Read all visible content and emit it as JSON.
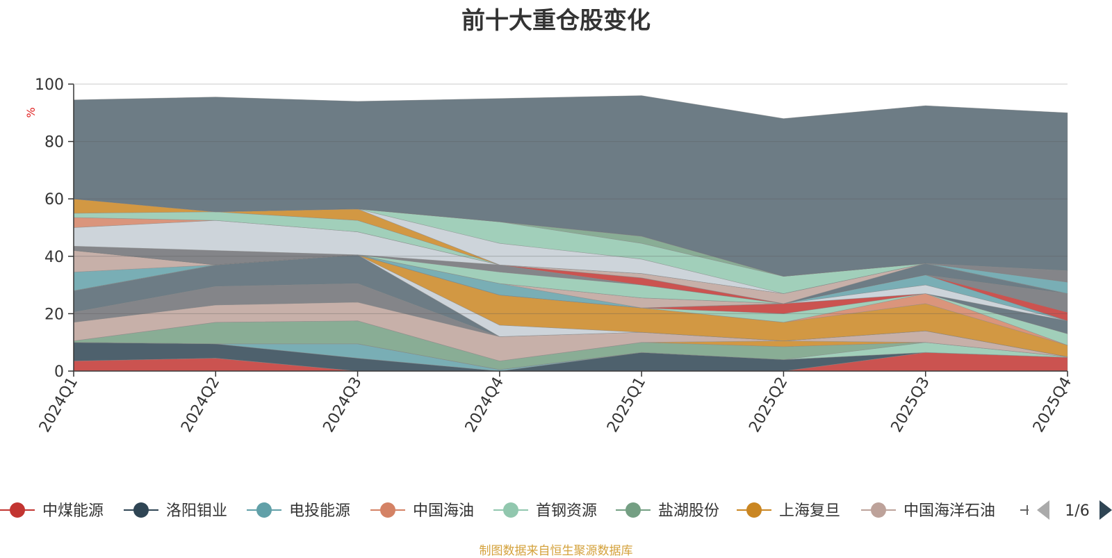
{
  "chart_data": {
    "type": "area",
    "title": "前十大重仓股变化",
    "ylabel": "%",
    "ylim": [
      0,
      100
    ],
    "yticks": [
      0,
      20,
      40,
      60,
      80,
      100
    ],
    "grid": true,
    "categories": [
      "2024Q1",
      "2024Q2",
      "2024Q3",
      "2024Q4",
      "2025Q1",
      "2025Q2",
      "2025Q3",
      "2025Q4"
    ],
    "series": [
      {
        "name": "中煤能源",
        "color": "#c23531",
        "values": [
          3.5,
          4.5,
          0.0,
          0.0,
          0.0,
          0.0,
          6.5,
          4.8
        ]
      },
      {
        "name": "洛阳钼业",
        "color": "#2f4554",
        "values": [
          6.5,
          5.0,
          4.5,
          0.0,
          6.5,
          4.0,
          0.0,
          0.0
        ]
      },
      {
        "name": "电投能源",
        "color": "#61a0a8",
        "values": [
          0.0,
          0.0,
          5.0,
          0.5,
          0.0,
          0.0,
          0.0,
          0.0
        ]
      },
      {
        "name": "中国海油",
        "color": "#d48265",
        "values": [
          0.0,
          0.0,
          0.0,
          0.0,
          0.0,
          0.0,
          0.0,
          0.0
        ]
      },
      {
        "name": "首钢资源",
        "color": "#91c7ae",
        "values": [
          0.0,
          0.0,
          0.0,
          0.0,
          0.0,
          0.0,
          3.5,
          0.2
        ]
      },
      {
        "name": "盐湖股份",
        "color": "#749f83",
        "values": [
          0.5,
          7.5,
          8.0,
          3.0,
          3.5,
          4.5,
          0.0,
          0.0
        ]
      },
      {
        "name": "上海复旦",
        "color": "#ca8622",
        "values": [
          0.0,
          0.0,
          0.0,
          0.0,
          0.0,
          2.0,
          0.0,
          0.0
        ]
      },
      {
        "name": "中国海洋石油",
        "color": "#bda29a",
        "values": [
          6.5,
          6.0,
          6.5,
          8.5,
          3.5,
          0.0,
          4.0,
          0.0
        ]
      },
      {
        "name": "",
        "color": "#6e7074",
        "values": [
          3.5,
          6.5,
          6.5,
          0.0,
          0.0,
          0.0,
          0.0,
          0.0
        ]
      },
      {
        "name": "",
        "color": "#546570",
        "values": [
          7.5,
          7.5,
          10.0,
          0.0,
          0.0,
          0.0,
          0.0,
          0.0
        ]
      },
      {
        "name": "",
        "color": "#c4ccd3",
        "values": [
          0.0,
          0.0,
          0.0,
          4.0,
          0.0,
          0.0,
          0.0,
          0.0
        ]
      },
      {
        "name": "",
        "color": "#ca8622",
        "values": [
          0.0,
          0.0,
          0.0,
          10.5,
          8.5,
          6.5,
          9.5,
          4.0
        ]
      },
      {
        "name": "",
        "color": "#d48265",
        "values": [
          0.0,
          0.0,
          0.0,
          0.0,
          0.0,
          0.0,
          3.5,
          0.0
        ]
      },
      {
        "name": "",
        "color": "#91c7ae",
        "values": [
          0.0,
          0.0,
          0.0,
          0.0,
          0.0,
          3.0,
          0.0,
          4.0
        ]
      },
      {
        "name": "",
        "color": "#c23531",
        "values": [
          0.0,
          0.0,
          0.0,
          0.0,
          0.0,
          3.5,
          0.0,
          0.0
        ]
      },
      {
        "name": "",
        "color": "#546570",
        "values": [
          0.0,
          0.0,
          0.0,
          0.0,
          0.0,
          0.0,
          0.0,
          4.5
        ]
      },
      {
        "name": "",
        "color": "#c4ccd3",
        "values": [
          0.0,
          0.0,
          0.0,
          0.0,
          0.0,
          0.0,
          3.0,
          0.0
        ]
      },
      {
        "name": "",
        "color": "#61a0a8",
        "values": [
          6.5,
          0.0,
          0.0,
          4.0,
          0.0,
          0.0,
          3.5,
          0.0
        ]
      },
      {
        "name": "",
        "color": "#bda29a",
        "values": [
          7.5,
          0.0,
          0.0,
          0.0,
          3.5,
          0.0,
          0.0,
          0.0
        ]
      },
      {
        "name": "",
        "color": "#749f83",
        "values": [
          0.0,
          0.0,
          0.0,
          0.0,
          0.0,
          0.0,
          0.0,
          0.0
        ]
      },
      {
        "name": "",
        "color": "#c23531",
        "values": [
          0.0,
          0.0,
          0.0,
          0.0,
          0.0,
          0.0,
          0.0,
          3.0
        ]
      },
      {
        "name": "",
        "color": "#91c7ae",
        "values": [
          0.0,
          0.0,
          0.0,
          4.0,
          4.5,
          0.0,
          0.0,
          0.0
        ]
      },
      {
        "name": "",
        "color": "#6e7074",
        "values": [
          1.5,
          5.0,
          0.0,
          2.5,
          0.0,
          0.0,
          0.0,
          6.5
        ]
      },
      {
        "name": "",
        "color": "#c23531",
        "values": [
          0.0,
          0.0,
          0.0,
          0.0,
          2.5,
          0.0,
          0.0,
          0.0
        ]
      },
      {
        "name": "",
        "color": "#546570",
        "values": [
          0.0,
          0.0,
          0.0,
          0.0,
          0.0,
          0.0,
          4.0,
          0.0
        ]
      },
      {
        "name": "",
        "color": "#bda29a",
        "values": [
          0.0,
          0.0,
          0.0,
          0.0,
          1.5,
          3.5,
          0.0,
          0.0
        ]
      },
      {
        "name": "",
        "color": "#c4ccd3",
        "values": [
          6.5,
          10.5,
          8.0,
          0.0,
          0.0,
          0.0,
          0.0,
          0.0
        ]
      },
      {
        "name": "",
        "color": "#d48265",
        "values": [
          3.5,
          0.0,
          0.0,
          0.0,
          0.0,
          0.0,
          0.0,
          0.0
        ]
      },
      {
        "name": "",
        "color": "#91c7ae",
        "values": [
          1.5,
          3.0,
          4.0,
          0.0,
          0.0,
          0.0,
          0.0,
          0.0
        ]
      },
      {
        "name": "",
        "color": "#ca8622",
        "values": [
          5.0,
          0.0,
          4.0,
          0.0,
          0.0,
          0.0,
          0.0,
          0.0
        ]
      },
      {
        "name": "",
        "color": "#c4ccd3",
        "values": [
          0.0,
          0.0,
          0.0,
          7.5,
          5.0,
          0.0,
          0.0,
          0.0
        ]
      },
      {
        "name": "",
        "color": "#91c7ae",
        "values": [
          0.0,
          0.0,
          0.0,
          7.5,
          5.5,
          6.0,
          0.0,
          0.0
        ]
      },
      {
        "name": "",
        "color": "#749f83",
        "values": [
          0.0,
          0.0,
          0.0,
          0.0,
          2.5,
          0.0,
          0.0,
          0.0
        ]
      },
      {
        "name": "",
        "color": "#61a0a8",
        "values": [
          0.0,
          0.0,
          0.0,
          0.0,
          0.0,
          0.0,
          0.0,
          4.0
        ]
      },
      {
        "name": "",
        "color": "#546570",
        "values": [
          0.0,
          0.0,
          0.0,
          0.0,
          0.0,
          0.0,
          0.0,
          0.0
        ]
      },
      {
        "name": "",
        "color": "#6e7074",
        "values": [
          0.0,
          0.0,
          0.0,
          0.0,
          0.0,
          0.0,
          0.0,
          4.0
        ]
      },
      {
        "name": "",
        "color": "#546570",
        "values": [
          34.5,
          40.0,
          37.5,
          43.0,
          49.0,
          55.0,
          55.0,
          55.0
        ]
      }
    ],
    "legend": {
      "position": "bottom",
      "items": [
        {
          "name": "中煤能源",
          "color": "#c23531"
        },
        {
          "name": "洛阳钼业",
          "color": "#2f4554"
        },
        {
          "name": "电投能源",
          "color": "#61a0a8"
        },
        {
          "name": "中国海油",
          "color": "#d48265"
        },
        {
          "name": "首钢资源",
          "color": "#91c7ae"
        },
        {
          "name": "盐湖股份",
          "color": "#749f83"
        },
        {
          "name": "上海复旦",
          "color": "#ca8622"
        },
        {
          "name": "中国海洋石油",
          "color": "#bda29a"
        }
      ],
      "page": "1/6"
    },
    "source": "制图数据来自恒生聚源数据库"
  }
}
